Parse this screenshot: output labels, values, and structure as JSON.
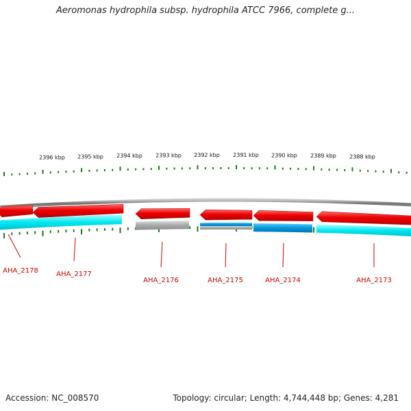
{
  "title": "Aeromonas hydrophila subsp. hydrophila ATCC 7966, complete g...",
  "footer": {
    "accession": "Accession: NC_008570",
    "summary": "Topology: circular; Length: 4,744,448 bp; Genes: 4,281"
  },
  "colors": {
    "backbone": "#8a8a8a",
    "gene_red": "#e80000",
    "gene_gray": "#9a9a9a",
    "track_cyan": "#00e5ee",
    "track_blue": "#0099dd",
    "tick": "#1a7a1a",
    "label": "#cc0000"
  },
  "scale": {
    "unit": "kbp",
    "tick_labels": [
      "2396 kbp",
      "2395 kbp",
      "2394 kbp",
      "2393 kbp",
      "2392 kbp",
      "2391 kbp",
      "2390 kbp",
      "2389 kbp",
      "2388 kbp"
    ]
  },
  "genes": [
    {
      "id": "AHA_2178",
      "label": "AHA_2178",
      "strand": "-",
      "color": "gene_red",
      "track": "cyan"
    },
    {
      "id": "AHA_2177",
      "label": "AHA_2177",
      "strand": "-",
      "color": "gene_red",
      "track": "cyan"
    },
    {
      "id": "AHA_2176",
      "label": "AHA_2176",
      "strand": "-",
      "color": "gene_red",
      "track": "gray"
    },
    {
      "id": "AHA_2175",
      "label": "AHA_2175",
      "strand": "-",
      "color": "gene_red",
      "track": "blue_gray"
    },
    {
      "id": "AHA_2174",
      "label": "AHA_2174",
      "strand": "-",
      "color": "gene_red",
      "track": "blue"
    },
    {
      "id": "AHA_2173",
      "label": "AHA_2173",
      "strand": "-",
      "color": "gene_red",
      "track": "cyan"
    }
  ]
}
